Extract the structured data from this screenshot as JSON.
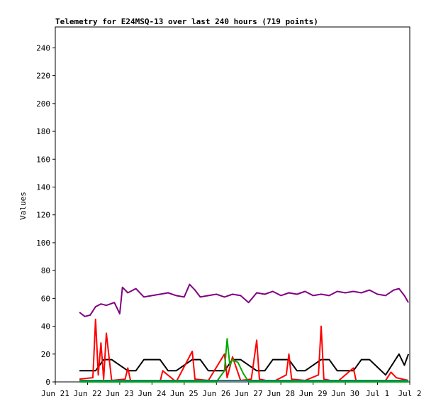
{
  "chart_data": {
    "type": "line",
    "title": "Telemetry for E24MSQ-13 over last 240 hours (719 points)",
    "xlabel": "",
    "ylabel": "Values",
    "xlim": [
      "2024-06-21",
      "2024-07-02"
    ],
    "ylim": [
      0,
      255
    ],
    "y_ticks": [
      0,
      20,
      40,
      60,
      80,
      100,
      120,
      140,
      160,
      180,
      200,
      220,
      240
    ],
    "x_ticks": [
      {
        "date": "2024-06-21",
        "label": "Jun 21"
      },
      {
        "date": "2024-06-22",
        "label": "Jun 22"
      },
      {
        "date": "2024-06-23",
        "label": "Jun 23"
      },
      {
        "date": "2024-06-24",
        "label": "Jun 24"
      },
      {
        "date": "2024-06-25",
        "label": "Jun 25"
      },
      {
        "date": "2024-06-26",
        "label": "Jun 26"
      },
      {
        "date": "2024-06-27",
        "label": "Jun 27"
      },
      {
        "date": "2024-06-28",
        "label": "Jun 28"
      },
      {
        "date": "2024-06-29",
        "label": "Jun 29"
      },
      {
        "date": "2024-06-30",
        "label": "Jun 30"
      },
      {
        "date": "2024-07-01",
        "label": "Jul 1"
      },
      {
        "date": "2024-07-02",
        "label": "Jul 2"
      }
    ],
    "grid": false,
    "legend": "none",
    "series": [
      {
        "color": "#800080",
        "x": [
          "2024-06-21T18:00",
          "2024-06-21T22:00",
          "2024-06-22T02:00",
          "2024-06-22T06:00",
          "2024-06-22T10:00",
          "2024-06-22T14:00",
          "2024-06-22T20:00",
          "2024-06-23T00:00",
          "2024-06-23T02:00",
          "2024-06-23T06:00",
          "2024-06-23T12:00",
          "2024-06-23T18:00",
          "2024-06-24T00:00",
          "2024-06-24T06:00",
          "2024-06-24T12:00",
          "2024-06-24T18:00",
          "2024-06-25T00:00",
          "2024-06-25T04:00",
          "2024-06-25T08:00",
          "2024-06-25T12:00",
          "2024-06-25T18:00",
          "2024-06-26T00:00",
          "2024-06-26T06:00",
          "2024-06-26T12:00",
          "2024-06-26T18:00",
          "2024-06-27T00:00",
          "2024-06-27T06:00",
          "2024-06-27T12:00",
          "2024-06-27T18:00",
          "2024-06-28T00:00",
          "2024-06-28T06:00",
          "2024-06-28T12:00",
          "2024-06-28T18:00",
          "2024-06-29T00:00",
          "2024-06-29T06:00",
          "2024-06-29T12:00",
          "2024-06-29T18:00",
          "2024-06-30T00:00",
          "2024-06-30T06:00",
          "2024-06-30T12:00",
          "2024-06-30T18:00",
          "2024-07-01T00:00",
          "2024-07-01T06:00",
          "2024-07-01T12:00",
          "2024-07-01T16:00",
          "2024-07-01T20:00",
          "2024-07-01T23:00"
        ],
        "values": [
          50,
          47,
          48,
          54,
          56,
          55,
          57,
          49,
          68,
          64,
          67,
          61,
          62,
          63,
          64,
          62,
          61,
          70,
          66,
          61,
          62,
          63,
          61,
          63,
          62,
          57,
          64,
          63,
          65,
          62,
          64,
          63,
          65,
          62,
          63,
          62,
          65,
          64,
          65,
          64,
          66,
          63,
          62,
          66,
          67,
          62,
          57
        ]
      },
      {
        "color": "#000000",
        "x": [
          "2024-06-21T18:00",
          "2024-06-22T06:00",
          "2024-06-22T12:00",
          "2024-06-22T18:00",
          "2024-06-23T06:00",
          "2024-06-23T12:00",
          "2024-06-23T18:00",
          "2024-06-24T06:00",
          "2024-06-24T12:00",
          "2024-06-24T18:00",
          "2024-06-25T06:00",
          "2024-06-25T12:00",
          "2024-06-25T18:00",
          "2024-06-26T06:00",
          "2024-06-26T12:00",
          "2024-06-26T18:00",
          "2024-06-27T06:00",
          "2024-06-27T12:00",
          "2024-06-27T18:00",
          "2024-06-28T06:00",
          "2024-06-28T12:00",
          "2024-06-28T18:00",
          "2024-06-29T06:00",
          "2024-06-29T12:00",
          "2024-06-29T18:00",
          "2024-06-30T06:00",
          "2024-06-30T12:00",
          "2024-06-30T18:00",
          "2024-07-01T06:00",
          "2024-07-01T12:00",
          "2024-07-01T16:00",
          "2024-07-01T20:00",
          "2024-07-01T23:00"
        ],
        "values": [
          8,
          8,
          16,
          16,
          8,
          8,
          16,
          16,
          8,
          8,
          16,
          16,
          8,
          8,
          16,
          16,
          8,
          8,
          16,
          16,
          8,
          8,
          16,
          16,
          8,
          8,
          16,
          16,
          5,
          14,
          20,
          12,
          20
        ]
      },
      {
        "color": "#ff0000",
        "x": [
          "2024-06-21T18:00",
          "2024-06-22T04:00",
          "2024-06-22T06:00",
          "2024-06-22T08:00",
          "2024-06-22T10:00",
          "2024-06-22T12:00",
          "2024-06-22T14:00",
          "2024-06-22T18:00",
          "2024-06-23T04:00",
          "2024-06-23T06:00",
          "2024-06-23T08:00",
          "2024-06-23T18:00",
          "2024-06-24T06:00",
          "2024-06-24T08:00",
          "2024-06-24T18:00",
          "2024-06-25T06:00",
          "2024-06-25T08:00",
          "2024-06-25T18:00",
          "2024-06-26T06:00",
          "2024-06-26T08:00",
          "2024-06-26T12:00",
          "2024-06-26T18:00",
          "2024-06-27T02:00",
          "2024-06-27T06:00",
          "2024-06-27T08:00",
          "2024-06-27T18:00",
          "2024-06-28T04:00",
          "2024-06-28T06:00",
          "2024-06-28T08:00",
          "2024-06-28T18:00",
          "2024-06-29T04:00",
          "2024-06-29T06:00",
          "2024-06-29T08:00",
          "2024-06-29T18:00",
          "2024-06-30T06:00",
          "2024-06-30T08:00",
          "2024-06-30T18:00",
          "2024-07-01T06:00",
          "2024-07-01T10:00",
          "2024-07-01T14:00",
          "2024-07-01T23:00"
        ],
        "values": [
          2,
          3,
          45,
          5,
          28,
          2,
          35,
          1,
          2,
          10,
          1,
          0,
          0,
          8,
          0,
          22,
          2,
          1,
          20,
          3,
          18,
          1,
          2,
          30,
          2,
          0,
          5,
          20,
          2,
          1,
          5,
          40,
          2,
          0,
          10,
          1,
          0,
          1,
          7,
          3,
          1
        ]
      },
      {
        "color": "#00aa00",
        "x": [
          "2024-06-21T18:00",
          "2024-06-26T00:00",
          "2024-06-26T06:00",
          "2024-06-26T08:00",
          "2024-06-26T10:00",
          "2024-06-26T12:00",
          "2024-06-26T16:00",
          "2024-06-26T20:00",
          "2024-06-27T00:00",
          "2024-07-01T23:00"
        ],
        "values": [
          0,
          0,
          8,
          31,
          12,
          16,
          14,
          6,
          0,
          0
        ]
      },
      {
        "color": "#008080",
        "x": [
          "2024-06-21T18:00",
          "2024-07-01T23:00"
        ],
        "values": [
          1,
          1
        ]
      }
    ]
  }
}
